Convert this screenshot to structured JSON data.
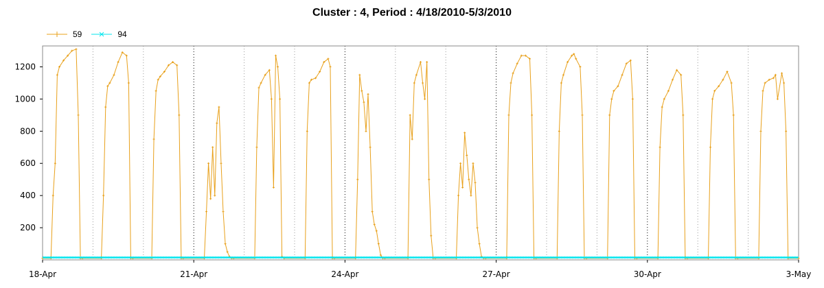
{
  "chart_data": {
    "type": "line",
    "title": "Cluster : 4, Period : 4/18/2010-5/3/2010",
    "xlabel": "",
    "ylabel": "",
    "x_ticks": [
      "18-Apr",
      "21-Apr",
      "24-Apr",
      "27-Apr",
      "30-Apr",
      "3-May"
    ],
    "y_ticks": [
      "200",
      "400",
      "600",
      "800",
      "1000",
      "1200"
    ],
    "xlim": [
      "2010-04-18",
      "2010-05-03"
    ],
    "ylim": [
      0,
      1330
    ],
    "grid": "dotted vertical lines",
    "legend": "top-left",
    "series": [
      {
        "name": "59",
        "color": "#e8a01a",
        "marker": "plus",
        "x": [
          "2010-04-18 00:00",
          "2010-04-18 04:00",
          "2010-04-18 05:00",
          "2010-04-18 06:00",
          "2010-04-18 07:00",
          "2010-04-18 08:00",
          "2010-04-18 10:00",
          "2010-04-18 12:00",
          "2010-04-18 14:00",
          "2010-04-18 16:00",
          "2010-04-18 17:00",
          "2010-04-18 18:00",
          "2010-04-18 19:00",
          "2010-04-19 04:00",
          "2010-04-19 05:00",
          "2010-04-19 06:00",
          "2010-04-19 07:00",
          "2010-04-19 08:00",
          "2010-04-19 10:00",
          "2010-04-19 12:00",
          "2010-04-19 14:00",
          "2010-04-19 16:00",
          "2010-04-19 17:00",
          "2010-04-19 18:00",
          "2010-04-19 19:00",
          "2010-04-20 04:00",
          "2010-04-20 05:00",
          "2010-04-20 06:00",
          "2010-04-20 07:00",
          "2010-04-20 08:00",
          "2010-04-20 10:00",
          "2010-04-20 12:00",
          "2010-04-20 14:00",
          "2010-04-20 16:00",
          "2010-04-20 17:00",
          "2010-04-20 18:00",
          "2010-04-20 19:00",
          "2010-04-21 05:00",
          "2010-04-21 06:00",
          "2010-04-21 07:00",
          "2010-04-21 08:00",
          "2010-04-21 09:00",
          "2010-04-21 10:00",
          "2010-04-21 11:00",
          "2010-04-21 12:00",
          "2010-04-21 13:00",
          "2010-04-21 14:00",
          "2010-04-21 15:00",
          "2010-04-21 16:00",
          "2010-04-21 17:00",
          "2010-04-21 18:00",
          "2010-04-21 19:00",
          "2010-04-22 05:00",
          "2010-04-22 06:00",
          "2010-04-22 07:00",
          "2010-04-22 08:00",
          "2010-04-22 10:00",
          "2010-04-22 12:00",
          "2010-04-22 13:00",
          "2010-04-22 14:00",
          "2010-04-22 15:00",
          "2010-04-22 16:00",
          "2010-04-22 17:00",
          "2010-04-22 18:00",
          "2010-04-22 19:00",
          "2010-04-23 05:00",
          "2010-04-23 06:00",
          "2010-04-23 07:00",
          "2010-04-23 08:00",
          "2010-04-23 10:00",
          "2010-04-23 12:00",
          "2010-04-23 14:00",
          "2010-04-23 16:00",
          "2010-04-23 17:00",
          "2010-04-23 18:00",
          "2010-04-23 19:00",
          "2010-04-24 05:00",
          "2010-04-24 06:00",
          "2010-04-24 07:00",
          "2010-04-24 08:00",
          "2010-04-24 09:00",
          "2010-04-24 10:00",
          "2010-04-24 11:00",
          "2010-04-24 12:00",
          "2010-04-24 13:00",
          "2010-04-24 14:00",
          "2010-04-24 15:00",
          "2010-04-24 16:00",
          "2010-04-24 17:00",
          "2010-04-24 18:00",
          "2010-04-24 19:00",
          "2010-04-25 06:00",
          "2010-04-25 07:00",
          "2010-04-25 08:00",
          "2010-04-25 09:00",
          "2010-04-25 10:00",
          "2010-04-25 12:00",
          "2010-04-25 13:00",
          "2010-04-25 14:00",
          "2010-04-25 15:00",
          "2010-04-25 16:00",
          "2010-04-25 17:00",
          "2010-04-25 18:00",
          "2010-04-25 19:00",
          "2010-04-26 05:00",
          "2010-04-26 06:00",
          "2010-04-26 07:00",
          "2010-04-26 08:00",
          "2010-04-26 09:00",
          "2010-04-26 10:00",
          "2010-04-26 11:00",
          "2010-04-26 12:00",
          "2010-04-26 13:00",
          "2010-04-26 14:00",
          "2010-04-26 15:00",
          "2010-04-26 16:00",
          "2010-04-26 17:00",
          "2010-04-26 18:00",
          "2010-04-26 19:00",
          "2010-04-27 05:00",
          "2010-04-27 06:00",
          "2010-04-27 07:00",
          "2010-04-27 08:00",
          "2010-04-27 10:00",
          "2010-04-27 12:00",
          "2010-04-27 14:00",
          "2010-04-27 16:00",
          "2010-04-27 17:00",
          "2010-04-27 18:00",
          "2010-04-27 19:00",
          "2010-04-28 05:00",
          "2010-04-28 06:00",
          "2010-04-28 07:00",
          "2010-04-28 08:00",
          "2010-04-28 10:00",
          "2010-04-28 12:00",
          "2010-04-28 13:00",
          "2010-04-28 14:00",
          "2010-04-28 16:00",
          "2010-04-28 17:00",
          "2010-04-28 18:00",
          "2010-04-28 19:00",
          "2010-04-29 05:00",
          "2010-04-29 06:00",
          "2010-04-29 07:00",
          "2010-04-29 08:00",
          "2010-04-29 10:00",
          "2010-04-29 12:00",
          "2010-04-29 14:00",
          "2010-04-29 16:00",
          "2010-04-29 17:00",
          "2010-04-29 18:00",
          "2010-04-29 19:00",
          "2010-04-30 05:00",
          "2010-04-30 06:00",
          "2010-04-30 07:00",
          "2010-04-30 08:00",
          "2010-04-30 10:00",
          "2010-04-30 12:00",
          "2010-04-30 14:00",
          "2010-04-30 16:00",
          "2010-04-30 17:00",
          "2010-04-30 18:00",
          "2010-04-30 19:00",
          "2010-05-01 05:00",
          "2010-05-01 06:00",
          "2010-05-01 07:00",
          "2010-05-01 08:00",
          "2010-05-01 10:00",
          "2010-05-01 12:00",
          "2010-05-01 14:00",
          "2010-05-01 16:00",
          "2010-05-01 17:00",
          "2010-05-01 18:00",
          "2010-05-01 19:00",
          "2010-05-02 05:00",
          "2010-05-02 06:00",
          "2010-05-02 07:00",
          "2010-05-02 08:00",
          "2010-05-02 10:00",
          "2010-05-02 12:00",
          "2010-05-02 13:00",
          "2010-05-02 14:00",
          "2010-05-02 16:00",
          "2010-05-02 17:00",
          "2010-05-02 18:00",
          "2010-05-02 19:00",
          "2010-05-03 00:00"
        ],
        "values": [
          10,
          10,
          400,
          600,
          1150,
          1200,
          1240,
          1270,
          1300,
          1310,
          900,
          10,
          10,
          10,
          400,
          950,
          1080,
          1100,
          1150,
          1230,
          1290,
          1270,
          1100,
          10,
          10,
          10,
          750,
          1050,
          1120,
          1140,
          1170,
          1210,
          1230,
          1210,
          900,
          10,
          10,
          10,
          300,
          600,
          380,
          700,
          400,
          850,
          950,
          600,
          300,
          100,
          50,
          20,
          10,
          10,
          10,
          700,
          1070,
          1100,
          1150,
          1180,
          1000,
          450,
          1270,
          1200,
          1000,
          20,
          10,
          10,
          800,
          1100,
          1120,
          1130,
          1170,
          1230,
          1250,
          1200,
          10,
          10,
          10,
          500,
          1150,
          1050,
          980,
          800,
          1030,
          700,
          300,
          220,
          180,
          100,
          30,
          10,
          10,
          10,
          900,
          750,
          1100,
          1150,
          1230,
          1100,
          1000,
          1230,
          500,
          150,
          10,
          10,
          10,
          400,
          600,
          450,
          790,
          650,
          500,
          400,
          600,
          480,
          200,
          100,
          20,
          10,
          10,
          10,
          900,
          1100,
          1160,
          1220,
          1270,
          1270,
          1250,
          900,
          10,
          10,
          10,
          800,
          1100,
          1150,
          1230,
          1270,
          1280,
          1250,
          1200,
          900,
          10,
          10,
          10,
          900,
          1000,
          1050,
          1080,
          1150,
          1220,
          1240,
          1000,
          10,
          10,
          10,
          700,
          950,
          1000,
          1050,
          1120,
          1180,
          1150,
          900,
          10,
          10,
          10,
          700,
          1000,
          1050,
          1080,
          1120,
          1170,
          1100,
          900,
          10,
          10,
          10,
          800,
          1050,
          1100,
          1120,
          1130,
          1150,
          1000,
          1160,
          1100,
          800,
          10,
          10
        ],
        "values_approximate": true
      },
      {
        "name": "94",
        "color": "#00e5ee",
        "marker": "x",
        "x": [
          "2010-04-18 00:00",
          "2010-05-03 00:00"
        ],
        "values": [
          15,
          15
        ]
      }
    ]
  }
}
